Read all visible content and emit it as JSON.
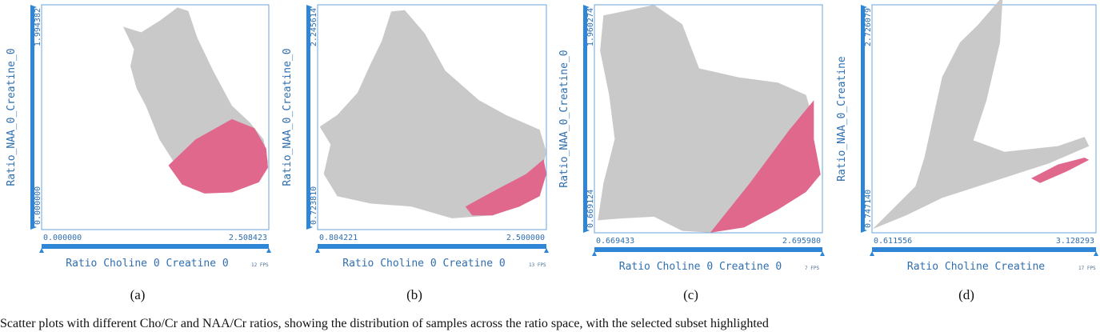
{
  "caption": "Scatter plots with different Cho/Cr and NAA/Cr ratios, showing the distribution of samples across the ratio space, with the selected subset highlighted",
  "chart_data": [
    {
      "type": "scatter",
      "panel_label": "(a)",
      "xlabel": "Ratio Choline 0 Creatine 0",
      "ylabel": "Ratio_NAA_0_Creatine_0",
      "xlim": [
        0.0,
        2.508423
      ],
      "ylim": [
        0.0,
        1.994382
      ],
      "x_ticks": [
        "0.000000",
        "2.508423"
      ],
      "y_ticks": [
        "0.000000",
        "1.994382"
      ],
      "fps": "12 FPS",
      "colors": {
        "points": "#c9c9c9",
        "selected": "#e0688c",
        "axis": "#2f86d6"
      },
      "series": [
        {
          "name": "",
          "color": "#c9c9c9",
          "outline": [
            [
              1.5,
              1.97
            ],
            [
              1.62,
              1.94
            ],
            [
              1.72,
              1.7
            ],
            [
              1.9,
              1.4
            ],
            [
              2.1,
              1.1
            ],
            [
              2.3,
              0.95
            ],
            [
              2.45,
              0.8
            ],
            [
              2.5,
              0.6
            ],
            [
              2.4,
              0.42
            ],
            [
              2.1,
              0.33
            ],
            [
              1.8,
              0.4
            ],
            [
              1.5,
              0.55
            ],
            [
              1.3,
              0.8
            ],
            [
              1.15,
              1.1
            ],
            [
              1.05,
              1.25
            ],
            [
              0.98,
              1.45
            ],
            [
              1.02,
              1.6
            ],
            [
              0.9,
              1.8
            ],
            [
              1.1,
              1.75
            ],
            [
              1.3,
              1.85
            ]
          ]
        },
        {
          "name": "",
          "color": "#e0688c",
          "outline": [
            [
              1.4,
              0.57
            ],
            [
              1.7,
              0.8
            ],
            [
              2.1,
              0.98
            ],
            [
              2.35,
              0.9
            ],
            [
              2.48,
              0.72
            ],
            [
              2.5,
              0.55
            ],
            [
              2.4,
              0.42
            ],
            [
              2.1,
              0.33
            ],
            [
              1.8,
              0.32
            ],
            [
              1.55,
              0.4
            ]
          ]
        }
      ]
    },
    {
      "type": "scatter",
      "panel_label": "(b)",
      "xlabel": "Ratio Choline 0 Creatine 0",
      "ylabel": "Ratio_NAA_0_Creatine_0",
      "xlim": [
        0.804221,
        2.5
      ],
      "ylim": [
        0.72381,
        2.245614
      ],
      "x_ticks": [
        "0.804221",
        "2.500000"
      ],
      "y_ticks": [
        "0.723810",
        "2.245614"
      ],
      "fps": "13 FPS",
      "colors": {
        "points": "#c9c9c9",
        "selected": "#e0688c",
        "axis": "#2f86d6"
      },
      "series": [
        {
          "name": "",
          "color": "#c9c9c9",
          "outline": [
            [
              1.35,
              2.2
            ],
            [
              1.45,
              2.21
            ],
            [
              1.6,
              2.05
            ],
            [
              1.75,
              1.8
            ],
            [
              2.0,
              1.6
            ],
            [
              2.2,
              1.5
            ],
            [
              2.45,
              1.4
            ],
            [
              2.5,
              1.25
            ],
            [
              2.45,
              1.05
            ],
            [
              2.3,
              0.9
            ],
            [
              2.1,
              0.82
            ],
            [
              1.8,
              0.8
            ],
            [
              1.5,
              0.88
            ],
            [
              1.2,
              0.9
            ],
            [
              0.95,
              0.95
            ],
            [
              0.85,
              1.1
            ],
            [
              0.9,
              1.3
            ],
            [
              0.82,
              1.42
            ],
            [
              0.95,
              1.5
            ],
            [
              1.1,
              1.65
            ],
            [
              1.2,
              1.85
            ],
            [
              1.28,
              2.0
            ]
          ]
        },
        {
          "name": "",
          "color": "#e0688c",
          "outline": [
            [
              1.9,
              0.88
            ],
            [
              2.1,
              0.98
            ],
            [
              2.35,
              1.1
            ],
            [
              2.48,
              1.2
            ],
            [
              2.5,
              1.1
            ],
            [
              2.45,
              0.95
            ],
            [
              2.3,
              0.88
            ],
            [
              2.1,
              0.82
            ],
            [
              1.95,
              0.82
            ]
          ]
        }
      ]
    },
    {
      "type": "scatter",
      "panel_label": "(c)",
      "xlabel": "Ratio Choline 0 Creatine 0",
      "ylabel": "Ratio_NAA_0_Creatine_0",
      "xlim": [
        0.669433,
        2.69598
      ],
      "ylim": [
        0.669124,
        1.960274
      ],
      "x_ticks": [
        "0.669433",
        "2.695980"
      ],
      "y_ticks": [
        "0.669124",
        "1.960274"
      ],
      "fps": "7 FPS",
      "colors": {
        "points": "#c9c9c9",
        "selected": "#e0688c",
        "axis": "#2f86d6"
      },
      "series": [
        {
          "name": "",
          "color": "#c9c9c9",
          "outline": [
            [
              0.75,
              1.9
            ],
            [
              1.2,
              1.96
            ],
            [
              1.45,
              1.85
            ],
            [
              1.6,
              1.6
            ],
            [
              1.95,
              1.55
            ],
            [
              2.3,
              1.52
            ],
            [
              2.55,
              1.45
            ],
            [
              2.62,
              1.3
            ],
            [
              2.6,
              1.1
            ],
            [
              2.68,
              1.0
            ],
            [
              2.6,
              0.95
            ],
            [
              2.3,
              0.8
            ],
            [
              2.0,
              0.7
            ],
            [
              1.7,
              0.67
            ],
            [
              1.45,
              0.68
            ],
            [
              1.2,
              0.76
            ],
            [
              0.9,
              0.75
            ],
            [
              0.7,
              0.74
            ],
            [
              0.75,
              0.95
            ],
            [
              0.85,
              1.2
            ],
            [
              0.8,
              1.45
            ],
            [
              0.72,
              1.7
            ]
          ]
        },
        {
          "name": "",
          "color": "#e0688c",
          "outline": [
            [
              1.7,
              0.67
            ],
            [
              2.05,
              0.95
            ],
            [
              2.4,
              1.25
            ],
            [
              2.62,
              1.42
            ],
            [
              2.62,
              1.2
            ],
            [
              2.68,
              1.0
            ],
            [
              2.55,
              0.9
            ],
            [
              2.3,
              0.8
            ],
            [
              2.0,
              0.7
            ]
          ]
        }
      ]
    },
    {
      "type": "scatter",
      "panel_label": "(d)",
      "xlabel": "Ratio Choline Creatine",
      "ylabel": "Ratio_NAA_0_Creatine",
      "xlim": [
        0.611556,
        3.128293
      ],
      "ylim": [
        0.74714,
        2.726079
      ],
      "x_ticks": [
        "0.611556",
        "3.128293"
      ],
      "y_ticks": [
        "0.747140",
        "2.726079"
      ],
      "fps": "17 FPS",
      "colors": {
        "points": "#c9c9c9",
        "selected": "#e0688c",
        "axis": "#2f86d6"
      },
      "series": [
        {
          "name": "",
          "color": "#c9c9c9",
          "outline": [
            [
              0.62,
              0.78
            ],
            [
              1.1,
              1.15
            ],
            [
              1.2,
              1.4
            ],
            [
              1.3,
              1.75
            ],
            [
              1.4,
              2.1
            ],
            [
              1.6,
              2.4
            ],
            [
              1.8,
              2.55
            ],
            [
              2.08,
              2.8
            ],
            [
              2.05,
              2.4
            ],
            [
              1.9,
              1.9
            ],
            [
              1.75,
              1.55
            ],
            [
              2.1,
              1.45
            ],
            [
              2.7,
              1.5
            ],
            [
              3.0,
              1.58
            ],
            [
              3.05,
              1.5
            ],
            [
              2.6,
              1.35
            ],
            [
              2.2,
              1.25
            ],
            [
              1.8,
              1.15
            ],
            [
              1.4,
              1.05
            ],
            [
              1.0,
              0.9
            ]
          ]
        },
        {
          "name": "",
          "color": "#e0688c",
          "outline": [
            [
              2.4,
              1.22
            ],
            [
              2.7,
              1.34
            ],
            [
              3.0,
              1.4
            ],
            [
              3.05,
              1.38
            ],
            [
              2.8,
              1.28
            ],
            [
              2.5,
              1.18
            ]
          ]
        }
      ]
    }
  ]
}
